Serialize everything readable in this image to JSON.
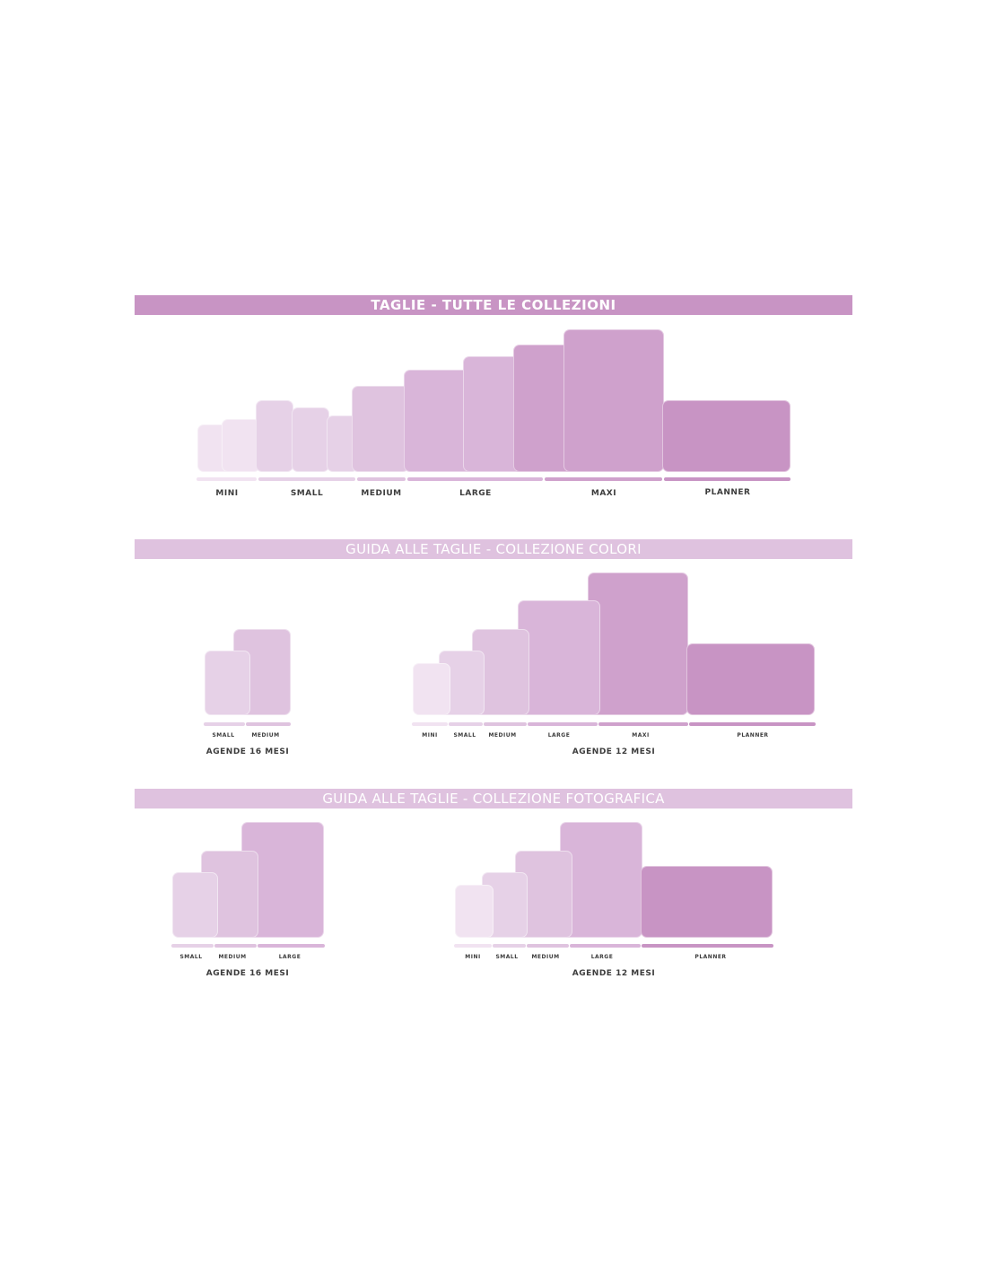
{
  "colors": {
    "c1": "#f1e3f1",
    "c2": "#e6d1e7",
    "c3": "#dfc3df",
    "c4": "#d9b5d9",
    "c5": "#cfa1cc",
    "c6": "#c894c4"
  },
  "section1": {
    "title": "TAGLIE - TUTTE LE COLLEZIONI",
    "labels": [
      "MINI",
      "SMALL",
      "MEDIUM",
      "LARGE",
      "MAXI",
      "PLANNER"
    ]
  },
  "section2": {
    "title": "GUIDA ALLE TAGLIE - COLLEZIONE COLORI",
    "left": {
      "labels": [
        "SMALL",
        "MEDIUM"
      ],
      "caption": "AGENDE 16 MESI"
    },
    "right": {
      "labels": [
        "MINI",
        "SMALL",
        "MEDIUM",
        "LARGE",
        "MAXI",
        "PLANNER"
      ],
      "caption": "AGENDE 12 MESI"
    }
  },
  "section3": {
    "title": "GUIDA ALLE TAGLIE - COLLEZIONE FOTOGRAFICA",
    "left": {
      "labels": [
        "SMALL",
        "MEDIUM",
        "LARGE"
      ],
      "caption": "AGENDE 16 MESI"
    },
    "right": {
      "labels": [
        "MINI",
        "SMALL",
        "MEDIUM",
        "LARGE",
        "PLANNER"
      ],
      "caption": "AGENDE 12 MESI"
    }
  }
}
